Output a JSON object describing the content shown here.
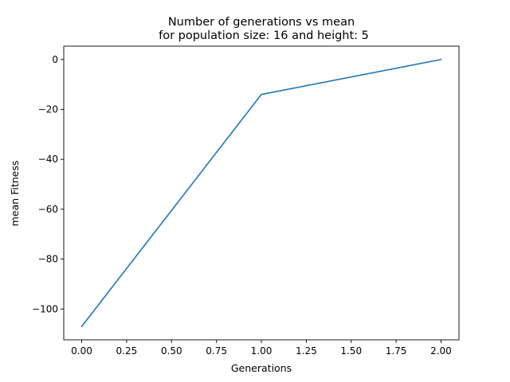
{
  "chart_data": {
    "type": "line",
    "title_lines": [
      "Number of generations vs mean",
      "for population size: 16 and height: 5"
    ],
    "xlabel": "Generations",
    "ylabel": "mean Fitness",
    "x": [
      0,
      1,
      2
    ],
    "series": [
      {
        "values": [
          -107,
          -14,
          0
        ],
        "color": "#1f77b4"
      }
    ],
    "xlim": [
      -0.1,
      2.1
    ],
    "ylim": [
      -112.35,
      5.35
    ],
    "xticks": [
      0.0,
      0.25,
      0.5,
      0.75,
      1.0,
      1.25,
      1.5,
      1.75,
      2.0
    ],
    "xtick_labels": [
      "0.00",
      "0.25",
      "0.50",
      "0.75",
      "1.00",
      "1.25",
      "1.50",
      "1.75",
      "2.00"
    ],
    "yticks": [
      0,
      -20,
      -40,
      -60,
      -80,
      -100
    ],
    "ytick_labels": [
      "0",
      "−20",
      "−40",
      "−60",
      "−80",
      "−100"
    ],
    "grid": false,
    "legend": false
  }
}
